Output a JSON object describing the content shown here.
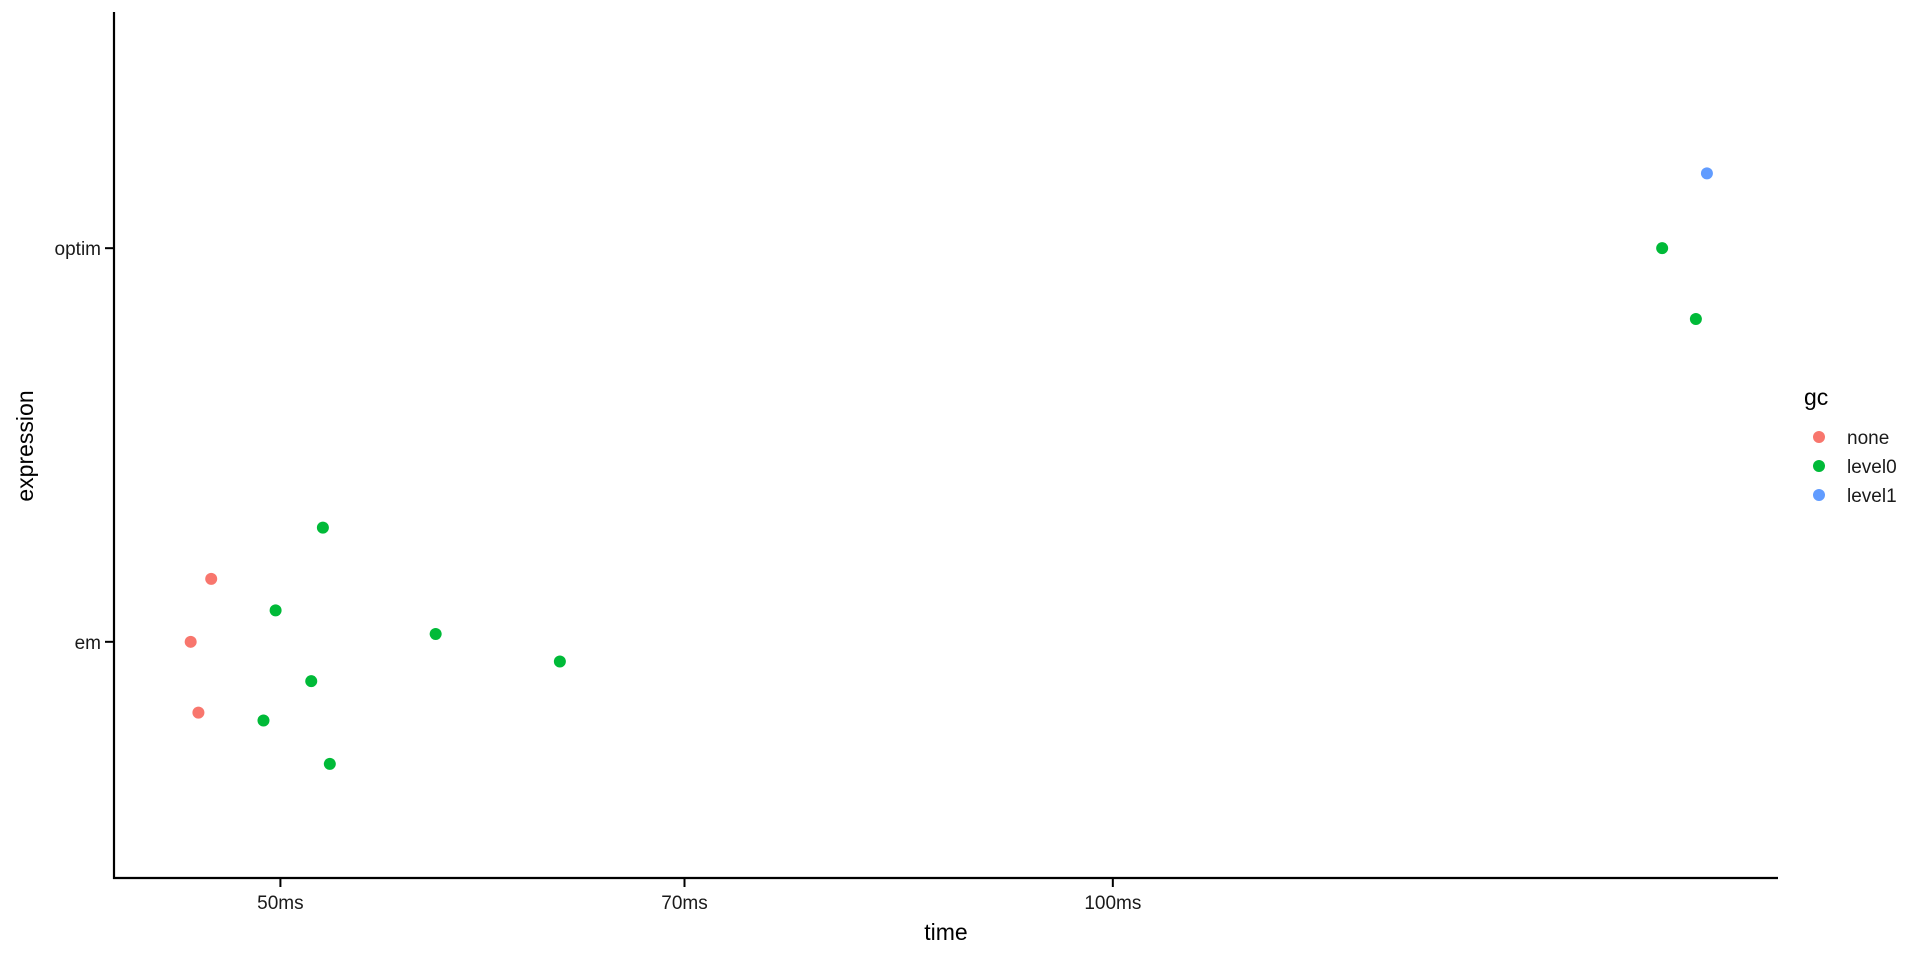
{
  "chart_data": {
    "type": "scatter",
    "x_scale": "log",
    "xlabel": "time",
    "ylabel": "expression",
    "xlim": [
      43.53,
      174.0
    ],
    "x_ticks": [
      {
        "value": 50,
        "label": "50ms"
      },
      {
        "value": 70,
        "label": "70ms"
      },
      {
        "value": 100,
        "label": "100ms"
      }
    ],
    "categories": [
      "em",
      "optim"
    ],
    "grid": false,
    "legend": {
      "title": "gc",
      "position": "right",
      "entries": [
        {
          "key": "none",
          "label": "none",
          "color": "#F8766D"
        },
        {
          "key": "level0",
          "label": "level0",
          "color": "#00BA38"
        },
        {
          "key": "level1",
          "label": "level1",
          "color": "#619CFF"
        }
      ]
    },
    "points": [
      {
        "expression": "em",
        "jitter": 0.16,
        "time": 47.2,
        "gc": "none"
      },
      {
        "expression": "em",
        "jitter": 0.0,
        "time": 46.4,
        "gc": "none"
      },
      {
        "expression": "em",
        "jitter": -0.18,
        "time": 46.7,
        "gc": "none"
      },
      {
        "expression": "em",
        "jitter": 0.29,
        "time": 51.8,
        "gc": "level0"
      },
      {
        "expression": "em",
        "jitter": 0.08,
        "time": 49.8,
        "gc": "level0"
      },
      {
        "expression": "em",
        "jitter": 0.02,
        "time": 56.9,
        "gc": "level0"
      },
      {
        "expression": "em",
        "jitter": -0.05,
        "time": 63.1,
        "gc": "level0"
      },
      {
        "expression": "em",
        "jitter": -0.1,
        "time": 51.3,
        "gc": "level0"
      },
      {
        "expression": "em",
        "jitter": -0.2,
        "time": 49.3,
        "gc": "level0"
      },
      {
        "expression": "em",
        "jitter": -0.31,
        "time": 52.1,
        "gc": "level0"
      },
      {
        "expression": "optim",
        "jitter": 0.0,
        "time": 158.0,
        "gc": "level0"
      },
      {
        "expression": "optim",
        "jitter": -0.18,
        "time": 162.5,
        "gc": "level0"
      },
      {
        "expression": "optim",
        "jitter": 0.19,
        "time": 164.0,
        "gc": "level1"
      }
    ]
  }
}
